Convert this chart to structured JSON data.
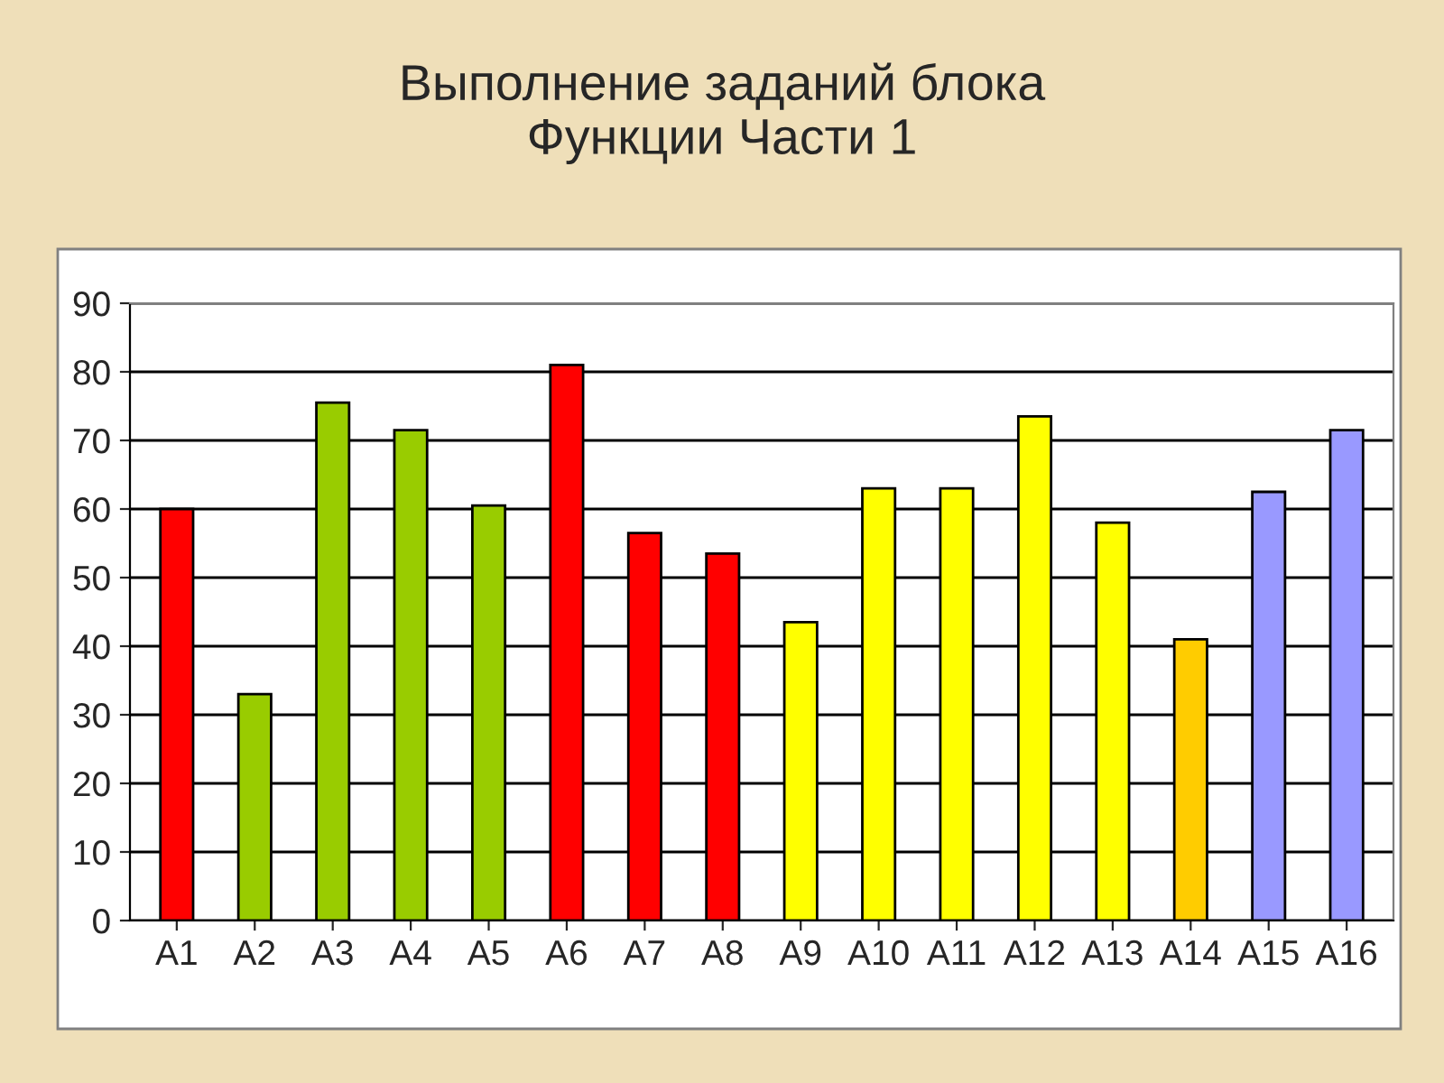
{
  "chart_data": {
    "type": "bar",
    "title": "Выполнение заданий блока\nФункции Части 1",
    "categories": [
      "A1",
      "A2",
      "A3",
      "A4",
      "A5",
      "A6",
      "A7",
      "A8",
      "A9",
      "A10",
      "A11",
      "A12",
      "A13",
      "A14",
      "A15",
      "A16"
    ],
    "values": [
      60,
      33,
      75.5,
      71.5,
      60.5,
      81,
      56.5,
      53.5,
      43.5,
      63,
      63,
      73.5,
      58,
      41,
      62.5,
      71.5
    ],
    "colors": [
      "#ff0000",
      "#99cc00",
      "#99cc00",
      "#99cc00",
      "#99cc00",
      "#ff0000",
      "#ff0000",
      "#ff0000",
      "#ffff00",
      "#ffff00",
      "#ffff00",
      "#ffff00",
      "#ffff00",
      "#ffcc00",
      "#9999ff",
      "#9999ff"
    ],
    "ylim": [
      0,
      90
    ],
    "yticks": [
      0,
      10,
      20,
      30,
      40,
      50,
      60,
      70,
      80,
      90
    ],
    "grid": "y",
    "legend": false
  }
}
